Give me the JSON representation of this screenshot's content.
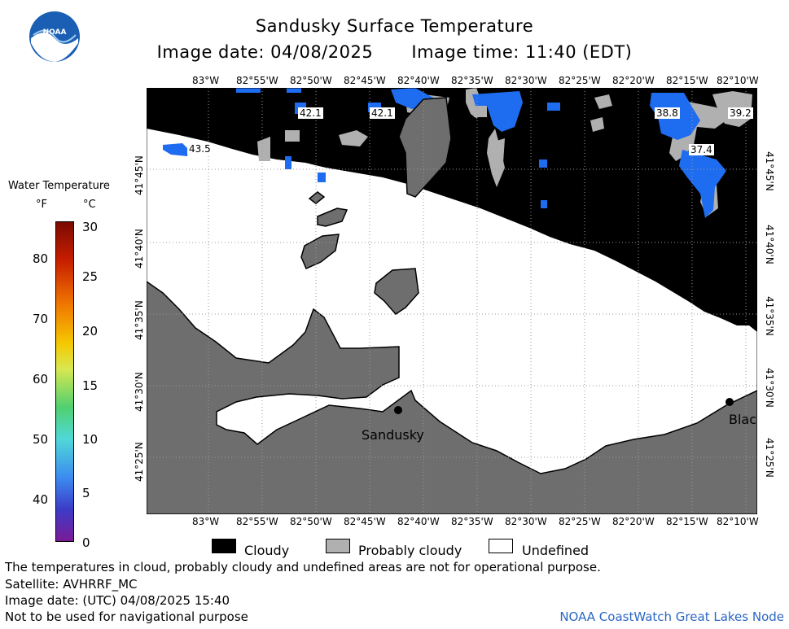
{
  "header": {
    "title": "Sandusky Surface Temperature",
    "image_date": "Image date: 04/08/2025",
    "image_time": "Image time: 11:40 (EDT)"
  },
  "logo": {
    "text": "NOAA",
    "icon": "noaa-logo"
  },
  "map": {
    "lon_labels": [
      "83°W",
      "82°55'W",
      "82°50'W",
      "82°45'W",
      "82°40'W",
      "82°35'W",
      "82°30'W",
      "82°25'W",
      "82°20'W",
      "82°15'W",
      "82°10'W"
    ],
    "lat_labels": [
      "41°45'N",
      "41°40'N",
      "41°35'N",
      "41°30'N",
      "41°25'N"
    ],
    "temperature_annotations": [
      "43.5",
      "42.1",
      "42.1",
      "38.8",
      "39.2",
      "37.4"
    ],
    "cities": [
      "Sandusky",
      "Blac"
    ],
    "colors": {
      "cloudy": "#000000",
      "probably_cloudy": "#b0b0b0",
      "undefined": "#ffffff",
      "land": "#6e6e6e",
      "water_cold": "#1e6cf0"
    }
  },
  "colorbar": {
    "title": "Water Temperature",
    "unit_f": "°F",
    "unit_c": "°C",
    "f_labels": [
      "80",
      "70",
      "60",
      "50",
      "40"
    ],
    "c_labels": [
      "30",
      "25",
      "20",
      "15",
      "10",
      "5",
      "0"
    ]
  },
  "key": {
    "cloudy": "Cloudy",
    "probably_cloudy": "Probably cloudy",
    "undefined": "Undefined"
  },
  "footer": {
    "disclaimer": "The temperatures in cloud, probably cloudy and undefined areas are not for operational purpose.",
    "satellite": "Satellite: AVHRRF_MC",
    "utc_date": "Image date: (UTC) 04/08/2025  15:40",
    "nav_warning": "Not to be used for navigational purpose",
    "credit": "NOAA CoastWatch Great Lakes Node"
  }
}
